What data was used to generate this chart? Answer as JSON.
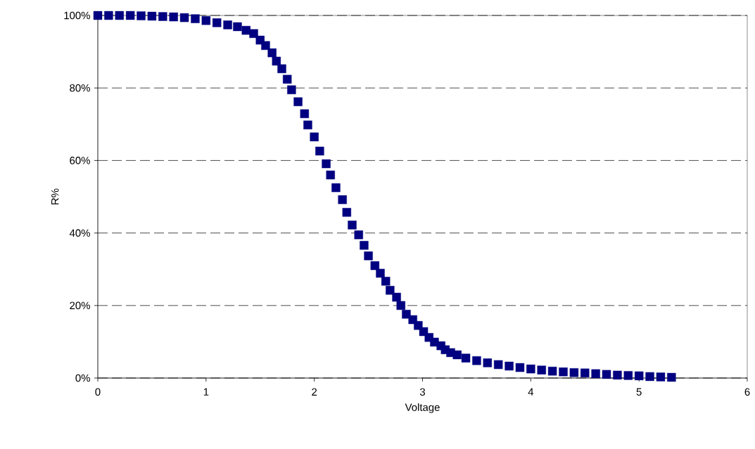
{
  "chart_data": {
    "type": "scatter",
    "xlabel": "Voltage",
    "ylabel": "R%",
    "series": [
      {
        "color": "#000080",
        "x": [
          0,
          0.1,
          0.2,
          0.3,
          0.4,
          0.5,
          0.6,
          0.7,
          0.8,
          0.9,
          1.0,
          1.1,
          1.2,
          1.29,
          1.37,
          1.44,
          1.5,
          1.55,
          1.61,
          1.65,
          1.7,
          1.75,
          1.79,
          1.85,
          1.91,
          1.94,
          2.0,
          2.05,
          2.11,
          2.15,
          2.2,
          2.26,
          2.3,
          2.35,
          2.41,
          2.46,
          2.5,
          2.56,
          2.61,
          2.66,
          2.7,
          2.76,
          2.8,
          2.85,
          2.91,
          2.96,
          3.01,
          3.06,
          3.11,
          3.17,
          3.21,
          3.26,
          3.32,
          3.4,
          3.5,
          3.6,
          3.7,
          3.8,
          3.9,
          4.0,
          4.1,
          4.2,
          4.3,
          4.4,
          4.5,
          4.6,
          4.7,
          4.8,
          4.9,
          5.0,
          5.1,
          5.2,
          5.3
        ],
        "values": [
          100,
          100,
          100,
          100,
          99.9,
          99.8,
          99.7,
          99.6,
          99.4,
          99.1,
          98.6,
          98.0,
          97.4,
          96.9,
          95.9,
          95.0,
          93.2,
          91.7,
          89.7,
          87.4,
          85.3,
          82.4,
          79.5,
          76.2,
          72.9,
          69.8,
          66.5,
          62.6,
          59.1,
          56.0,
          52.5,
          49.2,
          45.7,
          42.2,
          39.5,
          36.6,
          33.7,
          31.0,
          28.9,
          26.7,
          24.2,
          22.3,
          20.0,
          17.6,
          16.1,
          14.5,
          12.8,
          11.2,
          9.9,
          8.9,
          7.8,
          7.0,
          6.4,
          5.5,
          4.8,
          4.2,
          3.7,
          3.3,
          2.9,
          2.5,
          2.2,
          1.9,
          1.7,
          1.5,
          1.4,
          1.2,
          1.0,
          0.8,
          0.7,
          0.6,
          0.4,
          0.3,
          0.2
        ]
      }
    ],
    "xlim": [
      0,
      6
    ],
    "xticks": [
      0,
      1,
      2,
      3,
      4,
      5,
      6
    ],
    "ylim": [
      0,
      100
    ],
    "yticks": [
      {
        "value": 0,
        "label": "0%"
      },
      {
        "value": 20,
        "label": "20%"
      },
      {
        "value": 40,
        "label": "40%"
      },
      {
        "value": 60,
        "label": "60%"
      },
      {
        "value": 80,
        "label": "80%"
      },
      {
        "value": 100,
        "label": "100%"
      }
    ],
    "grid": "y",
    "marker": "square"
  }
}
